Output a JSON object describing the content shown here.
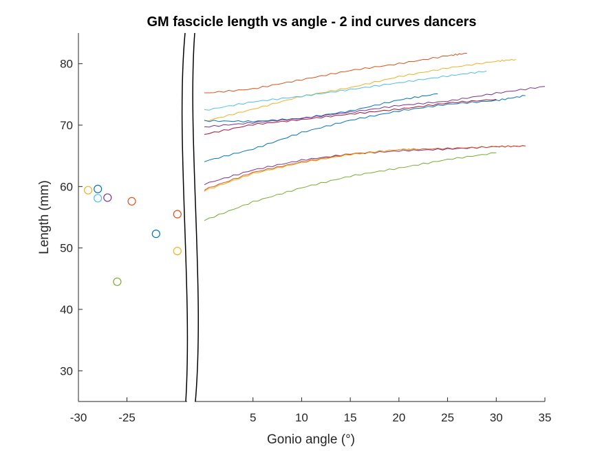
{
  "chart_data": {
    "type": "line",
    "title": "GM fascicle length vs angle - 2 ind curves dancers",
    "xlabel": "Gonio angle (°)",
    "ylabel": "Length (mm)",
    "ylim": [
      25,
      85
    ],
    "y_ticks": [
      30,
      40,
      50,
      60,
      70,
      80
    ],
    "x_tick_labels_left": [
      "-30",
      "-25"
    ],
    "x_tick_labels_right": [
      "5",
      "10",
      "15",
      "20",
      "25",
      "30",
      "35"
    ],
    "x_axis_break": true,
    "grid": false,
    "colors": [
      "#0072BD",
      "#D95319",
      "#EDB120",
      "#7E2F8E",
      "#77AC30",
      "#4DBEEE",
      "#A2142F"
    ],
    "scatter_points": [
      {
        "x": -29.0,
        "y": 59.4,
        "color": "#EDB120"
      },
      {
        "x": -28.0,
        "y": 59.6,
        "color": "#0072BD"
      },
      {
        "x": -28.0,
        "y": 58.1,
        "color": "#4DBEEE"
      },
      {
        "x": -27.0,
        "y": 58.2,
        "color": "#7E2F8E"
      },
      {
        "x": -24.5,
        "y": 57.6,
        "color": "#D95319"
      },
      {
        "x": -22.0,
        "y": 52.3,
        "color": "#0072BD"
      },
      {
        "x": -19.8,
        "y": 55.5,
        "color": "#D95319"
      },
      {
        "x": -19.8,
        "y": 49.5,
        "color": "#EDB120"
      },
      {
        "x": -26.0,
        "y": 44.5,
        "color": "#77AC30"
      }
    ],
    "series": [
      {
        "color": "#D95319",
        "x": [
          0,
          5,
          10,
          15,
          20,
          25,
          27
        ],
        "y": [
          75.2,
          75.9,
          77.4,
          78.9,
          80.0,
          81.3,
          81.7
        ]
      },
      {
        "color": "#EDB120",
        "x": [
          0,
          5,
          10,
          15,
          20,
          25,
          30,
          32
        ],
        "y": [
          70.6,
          72.6,
          74.7,
          76.1,
          77.9,
          79.3,
          80.4,
          80.7
        ]
      },
      {
        "color": "#4DBEEE",
        "x": [
          0,
          5,
          10,
          15,
          20,
          25,
          29
        ],
        "y": [
          72.4,
          73.8,
          74.7,
          75.8,
          76.9,
          78.0,
          78.8
        ]
      },
      {
        "color": "#0072BD",
        "x": [
          0,
          5,
          10,
          15,
          20,
          24
        ],
        "y": [
          70.7,
          70.6,
          71.1,
          72.3,
          74.1,
          75.1
        ]
      },
      {
        "color": "#7E2F8E",
        "x": [
          0,
          5,
          10,
          15,
          20,
          25,
          30,
          35
        ],
        "y": [
          69.7,
          70.4,
          71.1,
          72.1,
          73.2,
          73.9,
          75.2,
          76.3
        ]
      },
      {
        "color": "#A2142F",
        "x": [
          0,
          5,
          10,
          15,
          20,
          25,
          30
        ],
        "y": [
          68.5,
          70.1,
          70.9,
          71.8,
          72.6,
          73.6,
          74.2
        ]
      },
      {
        "color": "#0072BD",
        "x": [
          0,
          5,
          10,
          15,
          20,
          25,
          30,
          33
        ],
        "y": [
          64.1,
          66.1,
          68.8,
          70.8,
          72.3,
          73.4,
          74.0,
          74.8
        ]
      },
      {
        "color": "#7E2F8E",
        "x": [
          0,
          5,
          10,
          15,
          20,
          25,
          30,
          33
        ],
        "y": [
          60.4,
          62.7,
          64.3,
          65.3,
          65.8,
          66.1,
          66.5,
          66.6
        ]
      },
      {
        "color": "#D95319",
        "x": [
          0,
          5,
          10,
          15,
          20,
          25,
          30,
          33
        ],
        "y": [
          59.5,
          62.3,
          64.0,
          65.3,
          66.0,
          66.2,
          66.5,
          66.6
        ]
      },
      {
        "color": "#EDB120",
        "x": [
          0,
          5,
          10,
          15,
          20,
          22
        ],
        "y": [
          59.3,
          62.1,
          63.9,
          65.2,
          66.0,
          66.1
        ]
      },
      {
        "color": "#77AC30",
        "x": [
          0,
          5,
          10,
          15,
          20,
          25,
          30
        ],
        "y": [
          54.5,
          57.5,
          59.8,
          61.7,
          63.0,
          64.4,
          65.5
        ]
      }
    ]
  }
}
